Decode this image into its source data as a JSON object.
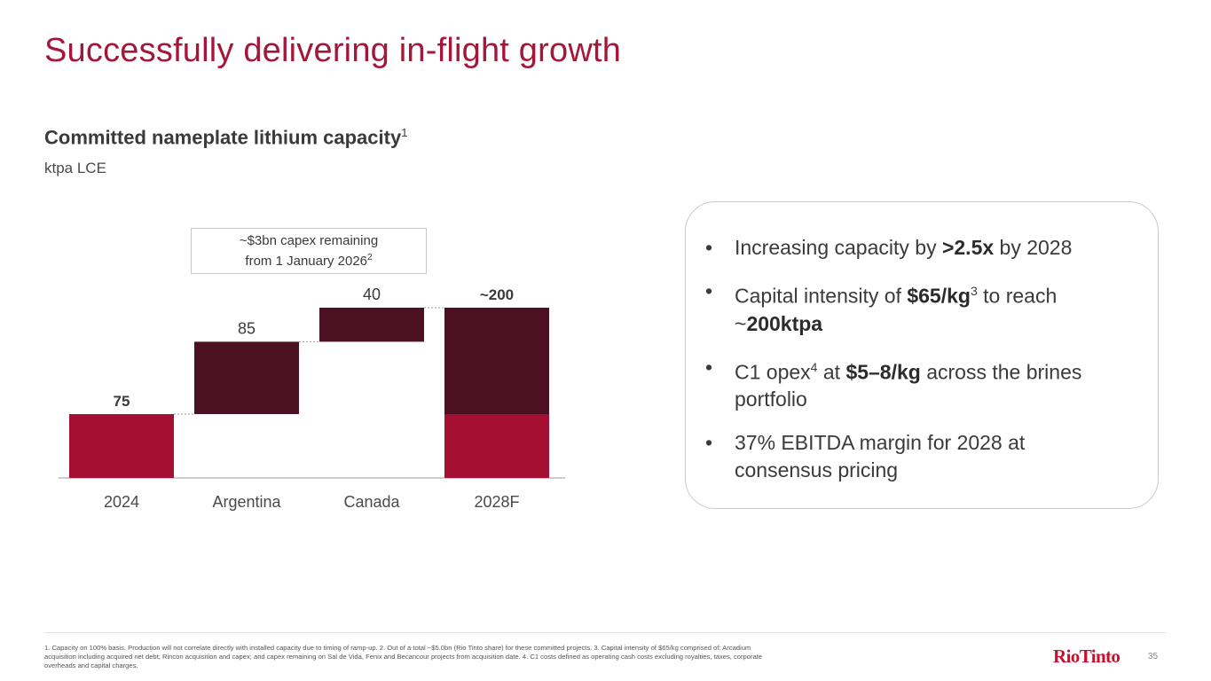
{
  "slide": {
    "title": "Successfully delivering in-flight growth",
    "page_number": "35"
  },
  "chart_heading": {
    "text": "Committed nameplate lithium capacity",
    "footnote_ref": "1",
    "unit": "ktpa LCE"
  },
  "capex_box": {
    "line1": "~$3bn capex remaining",
    "line2": "from 1 January 2026",
    "footnote_ref": "2"
  },
  "chart_data": {
    "type": "bar",
    "subtype": "waterfall",
    "title": "Committed nameplate lithium capacity",
    "ylabel": "ktpa LCE",
    "categories": [
      "2024",
      "Argentina",
      "Canada",
      "2028F"
    ],
    "steps": [
      {
        "category": "2024",
        "start": 0,
        "end": 75,
        "label": "75",
        "kind": "base"
      },
      {
        "category": "Argentina",
        "start": 75,
        "end": 160,
        "label": "85",
        "kind": "increment"
      },
      {
        "category": "Canada",
        "start": 160,
        "end": 200,
        "label": "40",
        "kind": "increment"
      },
      {
        "category": "2028F",
        "start": 0,
        "end": 200,
        "label": "~200",
        "kind": "total",
        "segments": [
          {
            "start": 0,
            "end": 75,
            "kind": "base"
          },
          {
            "start": 75,
            "end": 200,
            "kind": "increment"
          }
        ]
      }
    ],
    "ylim": [
      0,
      210
    ],
    "colors": {
      "base": "#a50f31",
      "increment": "#4b1123"
    },
    "grid": false,
    "legend": "none"
  },
  "callout": {
    "bullets": [
      [
        {
          "t": "Increasing capacity by "
        },
        {
          "t": ">2.5x",
          "b": true
        },
        {
          "t": " by 2028"
        }
      ],
      [
        {
          "t": "Capital intensity of "
        },
        {
          "t": "$65/kg",
          "b": true
        },
        {
          "t": "3",
          "sup": true
        },
        {
          "t": " to reach ~"
        },
        {
          "t": "200ktpa",
          "b": true
        }
      ],
      [
        {
          "t": "C1 opex"
        },
        {
          "t": "4",
          "sup": true
        },
        {
          "t": " at "
        },
        {
          "t": "$5–8/kg",
          "b": true
        },
        {
          "t": " across the brines portfolio"
        }
      ],
      [
        {
          "t": "37% EBITDA margin for 2028 at consensus pricing"
        }
      ]
    ],
    "bullet_glyph": "•"
  },
  "footnote": "1. Capacity on 100% basis. Production will not correlate directly with installed capacity due to timing of ramp-up. 2. Out of a total ~$5.0bn (Rio Tinto share) for these committed projects. 3. Capital intensity of $65/kg comprised of: Arcadium acquisition including acquired net debt; Rincon acquisition and capex; and capex remaining on Sal de Vida, Fenix and Becancour projects from acquisition date. 4. C1 costs defined as operating cash costs excluding royalties, taxes, corporate overheads and capital charges.",
  "logo_text": "RioTinto",
  "colors": {
    "title": "#a4173a",
    "logo": "#c8102e"
  }
}
